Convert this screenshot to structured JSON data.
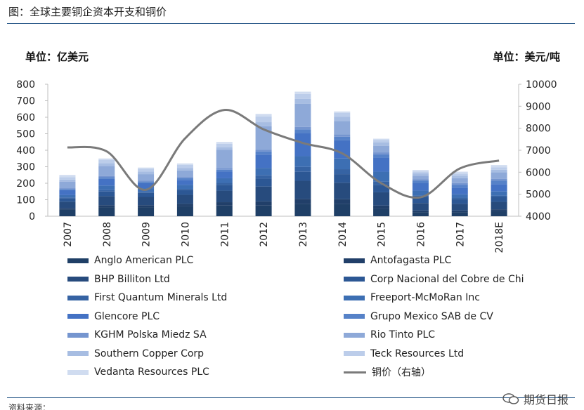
{
  "figure": {
    "title": "图：全球主要铜企资本开支和铜价",
    "left_unit": "单位：亿美元",
    "right_unit": "单位：美元/吨",
    "source_fragment": "资料来源：",
    "watermark": "期货日报"
  },
  "chart_data": {
    "type": "bar",
    "stacked": true,
    "title": "全球主要铜企资本开支和铜价",
    "categories": [
      "2007",
      "2008",
      "2009",
      "2010",
      "2011",
      "2012",
      "2013",
      "2014",
      "2015",
      "2016",
      "2017",
      "2018E"
    ],
    "ylim": [
      0,
      800
    ],
    "yticks": [
      0,
      100,
      200,
      300,
      400,
      500,
      600,
      700,
      800
    ],
    "y2lim": [
      4000,
      10000
    ],
    "y2ticks": [
      4000,
      5000,
      6000,
      7000,
      8000,
      9000,
      10000
    ],
    "series": [
      {
        "name": "Anglo American PLC",
        "color": "#1f3f66",
        "values": [
          40,
          55,
          55,
          60,
          65,
          65,
          75,
          75,
          45,
          25,
          25,
          30
        ]
      },
      {
        "name": "Antofagasta PLC",
        "color": "#213f69",
        "values": [
          8,
          12,
          12,
          15,
          20,
          25,
          30,
          28,
          20,
          10,
          10,
          12
        ]
      },
      {
        "name": "BHP Billiton Ltd",
        "color": "#274b7d",
        "values": [
          40,
          55,
          50,
          55,
          70,
          90,
          110,
          100,
          80,
          45,
          40,
          45
        ]
      },
      {
        "name": "Corp Nacional del Cobre de Chi",
        "color": "#2c5794",
        "values": [
          20,
          28,
          24,
          28,
          35,
          48,
          54,
          52,
          45,
          35,
          30,
          30
        ]
      },
      {
        "name": "First Quantum Minerals Ltd",
        "color": "#3663a3",
        "values": [
          6,
          8,
          7,
          8,
          12,
          20,
          30,
          30,
          20,
          10,
          8,
          8
        ]
      },
      {
        "name": "Freeport-McMoRan Inc",
        "color": "#3d6fb3",
        "values": [
          14,
          28,
          22,
          24,
          28,
          45,
          65,
          65,
          60,
          30,
          20,
          25
        ]
      },
      {
        "name": "Glencore PLC",
        "color": "#4472c4",
        "values": [
          30,
          40,
          30,
          30,
          40,
          80,
          140,
          110,
          85,
          45,
          40,
          45
        ]
      },
      {
        "name": "Grupo Mexico SAB de CV",
        "color": "#5682c8",
        "values": [
          6,
          10,
          8,
          10,
          12,
          20,
          22,
          22,
          20,
          15,
          18,
          20
        ]
      },
      {
        "name": "KGHM Polska Miedz SA",
        "color": "#7595cf",
        "values": [
          6,
          8,
          7,
          8,
          10,
          12,
          15,
          15,
          12,
          10,
          10,
          12
        ]
      },
      {
        "name": "Rio Tinto PLC",
        "color": "#8ea9d8",
        "values": [
          40,
          60,
          40,
          40,
          110,
          140,
          140,
          80,
          40,
          20,
          30,
          40
        ]
      },
      {
        "name": "Southern Copper Corp",
        "color": "#a7bde2",
        "values": [
          12,
          18,
          15,
          15,
          15,
          25,
          30,
          25,
          20,
          15,
          15,
          15
        ]
      },
      {
        "name": "Teck Resources Ltd",
        "color": "#bccdea",
        "values": [
          15,
          20,
          18,
          18,
          22,
          35,
          30,
          25,
          15,
          10,
          12,
          15
        ]
      },
      {
        "name": "Vedanta Resources PLC",
        "color": "#d0dcf0",
        "values": [
          13,
          8,
          7,
          9,
          11,
          15,
          14,
          8,
          8,
          10,
          12,
          13
        ]
      }
    ],
    "line": {
      "name": "铜价（右轴）",
      "color": "#7a7a7a",
      "values": [
        7130,
        6950,
        5200,
        7540,
        8830,
        7950,
        7330,
        6860,
        5500,
        4860,
        6170,
        6530
      ]
    }
  }
}
